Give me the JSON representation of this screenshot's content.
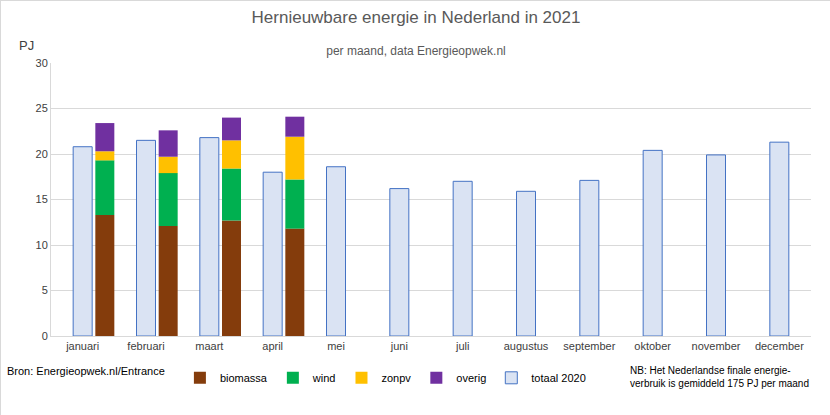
{
  "chart_data": {
    "type": "bar",
    "title": "Hernieuwbare energie in Nederland in 2021",
    "subtitle": "per maand, data Energieopwek.nl",
    "y_label": "PJ",
    "annotations": [
      "Bron: Energieopwek.nl/Entrance",
      "NB: Het Nederlandse finale energie-\nverbruik is gemiddeld 175 PJ per maand"
    ],
    "categories": [
      "januari",
      "februari",
      "maart",
      "april",
      "mei",
      "juni",
      "juli",
      "augustus",
      "september",
      "oktober",
      "november",
      "december"
    ],
    "series": [
      {
        "name": "biomassa",
        "color": "#843c0c",
        "stacked": true,
        "values": [
          13.3,
          12.1,
          12.7,
          11.8,
          null,
          null,
          null,
          null,
          null,
          null,
          null,
          null
        ]
      },
      {
        "name": "wind",
        "color": "#00b050",
        "stacked": true,
        "values": [
          6.0,
          5.8,
          5.7,
          5.4,
          null,
          null,
          null,
          null,
          null,
          null,
          null,
          null
        ]
      },
      {
        "name": "zonpv",
        "color": "#ffc000",
        "stacked": true,
        "values": [
          1.0,
          1.8,
          3.1,
          4.7,
          null,
          null,
          null,
          null,
          null,
          null,
          null,
          null
        ]
      },
      {
        "name": "overig",
        "color": "#7030a0",
        "stacked": true,
        "values": [
          3.1,
          2.9,
          2.5,
          2.2,
          null,
          null,
          null,
          null,
          null,
          null,
          null,
          null
        ]
      },
      {
        "name": "totaal 2020",
        "color": "#dae3f3",
        "stacked": false,
        "values": [
          20.8,
          21.5,
          21.8,
          18.0,
          18.6,
          16.2,
          17.0,
          15.9,
          17.1,
          20.4,
          19.9,
          21.3
        ]
      }
    ],
    "ylim": [
      0,
      30
    ],
    "yticks": [
      0,
      5,
      10,
      15,
      20,
      25,
      30
    ],
    "grid": true,
    "legend": "bottom"
  }
}
